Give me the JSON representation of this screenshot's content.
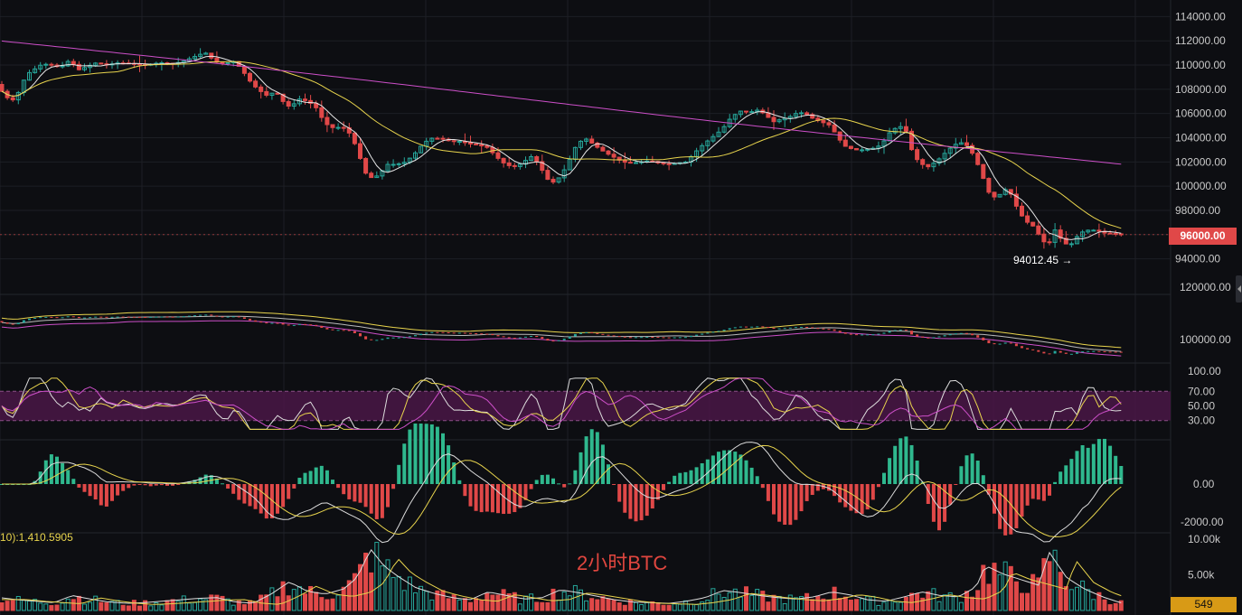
{
  "chart_data": {
    "type": "candlestick",
    "title": "2小时BTC",
    "symbol": "BTC",
    "timeframe": "2小时",
    "last_price_label": "96000.00",
    "low_marker_label": "94012.45 →",
    "price_axis": {
      "ticks": [
        "114000.00",
        "112000.00",
        "110000.00",
        "108000.00",
        "106000.00",
        "104000.00",
        "102000.00",
        "100000.00",
        "98000.00",
        "96000.00",
        "94000.00"
      ],
      "ylim": [
        93000,
        115000
      ]
    },
    "boll_axis": {
      "ticks": [
        "120000.00",
        "100000.00"
      ]
    },
    "rsi_axis": {
      "ticks": [
        "100.00",
        "70.00",
        "50.00",
        "30.00"
      ],
      "band": [
        30,
        70
      ]
    },
    "macd_axis": {
      "ticks": [
        "0.00",
        "-2000.00"
      ]
    },
    "volume_axis": {
      "ticks": [
        "10.00k",
        "5.00k"
      ],
      "readout": "10):1,410.5905",
      "last_volume_label": "549"
    },
    "price_path": [
      [
        0,
        108400
      ],
      [
        8,
        107500
      ],
      [
        16,
        107000
      ],
      [
        24,
        107800
      ],
      [
        32,
        109200
      ],
      [
        40,
        109600
      ],
      [
        50,
        110100
      ],
      [
        60,
        110000
      ],
      [
        70,
        109800
      ],
      [
        80,
        110400
      ],
      [
        90,
        109600
      ],
      [
        100,
        109900
      ],
      [
        110,
        110200
      ],
      [
        120,
        110000
      ],
      [
        135,
        110200
      ],
      [
        150,
        110100
      ],
      [
        165,
        110000
      ],
      [
        180,
        110200
      ],
      [
        195,
        110100
      ],
      [
        205,
        110300
      ],
      [
        215,
        110600
      ],
      [
        225,
        110900
      ],
      [
        232,
        111000
      ],
      [
        240,
        110300
      ],
      [
        250,
        110100
      ],
      [
        262,
        110300
      ],
      [
        270,
        109700
      ],
      [
        278,
        108800
      ],
      [
        288,
        108000
      ],
      [
        298,
        107500
      ],
      [
        308,
        107800
      ],
      [
        316,
        107000
      ],
      [
        324,
        106500
      ],
      [
        334,
        107200
      ],
      [
        344,
        107000
      ],
      [
        354,
        106400
      ],
      [
        362,
        105200
      ],
      [
        372,
        104800
      ],
      [
        382,
        104900
      ],
      [
        392,
        104200
      ],
      [
        400,
        102600
      ],
      [
        408,
        101000
      ],
      [
        416,
        100600
      ],
      [
        424,
        101100
      ],
      [
        432,
        101800
      ],
      [
        442,
        101800
      ],
      [
        452,
        102000
      ],
      [
        462,
        102700
      ],
      [
        472,
        103600
      ],
      [
        482,
        104000
      ],
      [
        492,
        103900
      ],
      [
        502,
        103700
      ],
      [
        512,
        103700
      ],
      [
        522,
        103500
      ],
      [
        532,
        103400
      ],
      [
        542,
        103200
      ],
      [
        550,
        102600
      ],
      [
        558,
        102000
      ],
      [
        566,
        101700
      ],
      [
        574,
        101600
      ],
      [
        584,
        102100
      ],
      [
        592,
        102500
      ],
      [
        600,
        101700
      ],
      [
        608,
        100600
      ],
      [
        616,
        100300
      ],
      [
        624,
        100900
      ],
      [
        632,
        102000
      ],
      [
        642,
        103600
      ],
      [
        652,
        103900
      ],
      [
        662,
        103300
      ],
      [
        672,
        102800
      ],
      [
        682,
        102400
      ],
      [
        692,
        102000
      ],
      [
        702,
        101900
      ],
      [
        712,
        102000
      ],
      [
        722,
        102100
      ],
      [
        732,
        101900
      ],
      [
        742,
        101800
      ],
      [
        752,
        101900
      ],
      [
        762,
        102000
      ],
      [
        772,
        102800
      ],
      [
        782,
        103500
      ],
      [
        792,
        104100
      ],
      [
        802,
        104700
      ],
      [
        812,
        105700
      ],
      [
        822,
        106200
      ],
      [
        832,
        106100
      ],
      [
        842,
        106300
      ],
      [
        850,
        105900
      ],
      [
        858,
        105300
      ],
      [
        866,
        105500
      ],
      [
        876,
        105700
      ],
      [
        886,
        106100
      ],
      [
        894,
        106000
      ],
      [
        902,
        105600
      ],
      [
        912,
        105300
      ],
      [
        922,
        105000
      ],
      [
        930,
        104000
      ],
      [
        938,
        103300
      ],
      [
        948,
        103000
      ],
      [
        958,
        103000
      ],
      [
        968,
        103100
      ],
      [
        978,
        103400
      ],
      [
        988,
        104500
      ],
      [
        998,
        105000
      ],
      [
        1006,
        104500
      ],
      [
        1012,
        102900
      ],
      [
        1020,
        101900
      ],
      [
        1030,
        101600
      ],
      [
        1040,
        102100
      ],
      [
        1048,
        102700
      ],
      [
        1058,
        103400
      ],
      [
        1066,
        103600
      ],
      [
        1074,
        103300
      ],
      [
        1082,
        102300
      ],
      [
        1090,
        100800
      ],
      [
        1098,
        99300
      ],
      [
        1106,
        99000
      ],
      [
        1114,
        99800
      ],
      [
        1122,
        99300
      ],
      [
        1130,
        97900
      ],
      [
        1138,
        97100
      ],
      [
        1146,
        96700
      ],
      [
        1154,
        95800
      ],
      [
        1162,
        95000
      ],
      [
        1170,
        96400
      ],
      [
        1178,
        95500
      ],
      [
        1186,
        95000
      ],
      [
        1194,
        95800
      ],
      [
        1202,
        96300
      ],
      [
        1210,
        96400
      ],
      [
        1218,
        96300
      ],
      [
        1226,
        96100
      ],
      [
        1234,
        96100
      ],
      [
        1242,
        96000
      ]
    ],
    "volume_path": [
      [
        0,
        1800
      ],
      [
        20,
        1500
      ],
      [
        40,
        1300
      ],
      [
        60,
        1100
      ],
      [
        80,
        2100
      ],
      [
        100,
        1600
      ],
      [
        120,
        1200
      ],
      [
        140,
        1000
      ],
      [
        160,
        1100
      ],
      [
        180,
        1300
      ],
      [
        200,
        1500
      ],
      [
        220,
        1700
      ],
      [
        240,
        1800
      ],
      [
        260,
        1200
      ],
      [
        280,
        1000
      ],
      [
        300,
        2300
      ],
      [
        320,
        4000
      ],
      [
        340,
        2700
      ],
      [
        360,
        2300
      ],
      [
        380,
        3000
      ],
      [
        395,
        4600
      ],
      [
        410,
        8600
      ],
      [
        425,
        6200
      ],
      [
        440,
        4800
      ],
      [
        460,
        3200
      ],
      [
        480,
        2400
      ],
      [
        500,
        1800
      ],
      [
        520,
        1500
      ],
      [
        540,
        2600
      ],
      [
        560,
        2100
      ],
      [
        580,
        1600
      ],
      [
        600,
        1800
      ],
      [
        620,
        2900
      ],
      [
        640,
        2500
      ],
      [
        660,
        2000
      ],
      [
        680,
        1500
      ],
      [
        700,
        1200
      ],
      [
        720,
        1100
      ],
      [
        740,
        1000
      ],
      [
        760,
        1300
      ],
      [
        780,
        1800
      ],
      [
        800,
        2800
      ],
      [
        820,
        2500
      ],
      [
        840,
        2100
      ],
      [
        860,
        1800
      ],
      [
        880,
        1600
      ],
      [
        900,
        1900
      ],
      [
        920,
        2600
      ],
      [
        940,
        2200
      ],
      [
        960,
        1500
      ],
      [
        980,
        1300
      ],
      [
        1000,
        1900
      ],
      [
        1020,
        2600
      ],
      [
        1040,
        2100
      ],
      [
        1060,
        1900
      ],
      [
        1080,
        3300
      ],
      [
        1090,
        6300
      ],
      [
        1110,
        5100
      ],
      [
        1130,
        4300
      ],
      [
        1150,
        3500
      ],
      [
        1160,
        8300
      ],
      [
        1180,
        4600
      ],
      [
        1200,
        3000
      ],
      [
        1220,
        1900
      ],
      [
        1242,
        1000
      ]
    ],
    "colors": {
      "up": "#26a69a",
      "down": "#e04848",
      "ma_short": "#e6e6e6",
      "ma_mid": "#e8d44d",
      "ma_long": "#cc4fc8",
      "rsi_band": "#4a1646",
      "macd_pos": "#2fb88e",
      "macd_neg": "#e04848",
      "grid": "#1d1f25",
      "background": "#0d0e12"
    }
  }
}
